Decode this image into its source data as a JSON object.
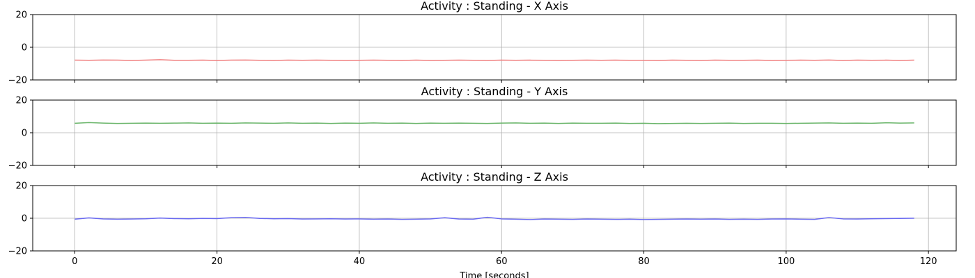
{
  "chart_data": [
    {
      "type": "line",
      "title": "Activity : Standing - X Axis",
      "xlabel": "",
      "ylabel": "",
      "xlim": [
        -5.9,
        123.9
      ],
      "ylim": [
        -20,
        20
      ],
      "xticks": [
        0,
        20,
        40,
        60,
        80,
        100,
        120
      ],
      "yticks": [
        -20,
        0,
        20
      ],
      "ytick_labels": [
        "−20",
        "0",
        "20"
      ],
      "grid": true,
      "color": "#f08080",
      "series": [
        {
          "x": [
            0,
            2,
            4,
            6,
            8,
            10,
            12,
            14,
            16,
            18,
            20,
            22,
            24,
            26,
            28,
            30,
            32,
            34,
            36,
            38,
            40,
            42,
            44,
            46,
            48,
            50,
            52,
            54,
            56,
            58,
            60,
            62,
            64,
            66,
            68,
            70,
            72,
            74,
            76,
            78,
            80,
            82,
            84,
            86,
            88,
            90,
            92,
            94,
            96,
            98,
            100,
            102,
            104,
            106,
            108,
            110,
            112,
            114,
            116,
            118
          ],
          "values": [
            -7.9,
            -8.0,
            -7.8,
            -7.9,
            -8.1,
            -7.9,
            -7.6,
            -8.0,
            -8.0,
            -7.9,
            -8.1,
            -7.9,
            -7.8,
            -8.0,
            -8.1,
            -7.9,
            -8.0,
            -7.9,
            -8.0,
            -8.1,
            -8.0,
            -7.9,
            -8.0,
            -8.1,
            -7.9,
            -8.1,
            -8.0,
            -7.9,
            -8.0,
            -8.1,
            -7.9,
            -8.0,
            -7.9,
            -8.0,
            -8.1,
            -8.0,
            -7.9,
            -8.0,
            -7.9,
            -8.0,
            -8.0,
            -8.1,
            -7.9,
            -8.0,
            -8.1,
            -7.9,
            -8.0,
            -8.0,
            -7.9,
            -8.1,
            -8.0,
            -7.9,
            -8.0,
            -7.8,
            -8.1,
            -7.9,
            -8.0,
            -7.9,
            -8.1,
            -7.9
          ]
        }
      ]
    },
    {
      "type": "line",
      "title": "Activity : Standing - Y Axis",
      "xlabel": "",
      "ylabel": "",
      "xlim": [
        -5.9,
        123.9
      ],
      "ylim": [
        -20,
        20
      ],
      "xticks": [
        0,
        20,
        40,
        60,
        80,
        100,
        120
      ],
      "yticks": [
        -20,
        0,
        20
      ],
      "ytick_labels": [
        "−20",
        "0",
        "20"
      ],
      "grid": true,
      "color": "#6ab56a",
      "series": [
        {
          "x": [
            0,
            2,
            4,
            6,
            8,
            10,
            12,
            14,
            16,
            18,
            20,
            22,
            24,
            26,
            28,
            30,
            32,
            34,
            36,
            38,
            40,
            42,
            44,
            46,
            48,
            50,
            52,
            54,
            56,
            58,
            60,
            62,
            64,
            66,
            68,
            70,
            72,
            74,
            76,
            78,
            80,
            82,
            84,
            86,
            88,
            90,
            92,
            94,
            96,
            98,
            100,
            102,
            104,
            106,
            108,
            110,
            112,
            114,
            116,
            118
          ],
          "values": [
            5.8,
            6.2,
            5.9,
            5.7,
            5.8,
            5.9,
            5.8,
            5.9,
            6.0,
            5.8,
            5.9,
            5.8,
            6.0,
            5.9,
            5.8,
            6.0,
            5.8,
            5.9,
            5.7,
            5.9,
            5.8,
            6.0,
            5.8,
            5.9,
            5.7,
            5.9,
            5.8,
            5.9,
            5.8,
            5.7,
            5.9,
            6.0,
            5.8,
            5.9,
            5.7,
            5.9,
            5.8,
            5.8,
            5.9,
            5.7,
            5.8,
            5.6,
            5.7,
            5.8,
            5.7,
            5.8,
            5.9,
            5.7,
            5.8,
            5.8,
            5.7,
            5.8,
            5.9,
            6.0,
            5.8,
            5.9,
            5.8,
            6.1,
            5.9,
            6.0
          ]
        }
      ]
    },
    {
      "type": "line",
      "title": "Activity : Standing - Z Axis",
      "xlabel": "Time [seconds]",
      "ylabel": "",
      "xlim": [
        -5.9,
        123.9
      ],
      "ylim": [
        -20,
        20
      ],
      "xticks": [
        0,
        20,
        40,
        60,
        80,
        100,
        120
      ],
      "yticks": [
        -20,
        0,
        20
      ],
      "ytick_labels": [
        "−20",
        "0",
        "20"
      ],
      "grid": true,
      "color": "#6a6af0",
      "series": [
        {
          "x": [
            0,
            2,
            4,
            6,
            8,
            10,
            12,
            14,
            16,
            18,
            20,
            22,
            24,
            26,
            28,
            30,
            32,
            34,
            36,
            38,
            40,
            42,
            44,
            46,
            48,
            50,
            52,
            54,
            56,
            58,
            60,
            62,
            64,
            66,
            68,
            70,
            72,
            74,
            76,
            78,
            80,
            82,
            84,
            86,
            88,
            90,
            92,
            94,
            96,
            98,
            100,
            102,
            104,
            106,
            108,
            110,
            112,
            114,
            116,
            118
          ],
          "values": [
            -0.6,
            0.2,
            -0.4,
            -0.6,
            -0.5,
            -0.3,
            0.1,
            -0.2,
            -0.3,
            -0.1,
            -0.2,
            0.3,
            0.5,
            -0.1,
            -0.3,
            -0.2,
            -0.5,
            -0.4,
            -0.3,
            -0.5,
            -0.4,
            -0.6,
            -0.5,
            -0.7,
            -0.6,
            -0.4,
            0.3,
            -0.5,
            -0.6,
            0.6,
            -0.4,
            -0.6,
            -0.8,
            -0.5,
            -0.6,
            -0.7,
            -0.5,
            -0.6,
            -0.7,
            -0.6,
            -0.8,
            -0.7,
            -0.6,
            -0.5,
            -0.6,
            -0.5,
            -0.7,
            -0.6,
            -0.7,
            -0.5,
            -0.4,
            -0.6,
            -0.7,
            0.4,
            -0.4,
            -0.5,
            -0.3,
            -0.2,
            -0.1,
            0.0
          ]
        }
      ]
    }
  ]
}
